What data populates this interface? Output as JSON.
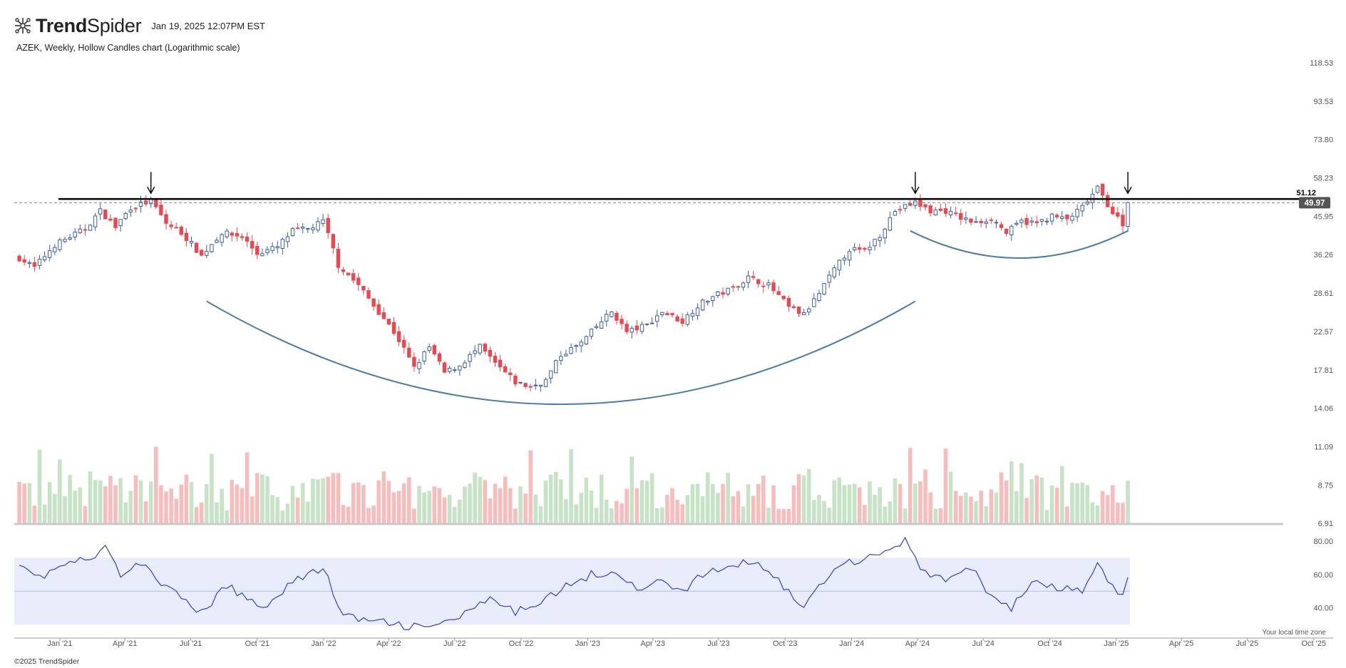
{
  "header": {
    "brand_bold": "Trend",
    "brand_light": "Spider",
    "timestamp": "Jan 19, 2025 12:07PM EST"
  },
  "chart_title": "AZEK, Weekly, Hollow Candles chart (Logarithmic scale)",
  "footer": "©2025 TrendSpider",
  "timezone_note": "Your local time zone",
  "colors": {
    "up": "#3b5ea8",
    "down": "#e8494f",
    "vol_up": "#c6e3c6",
    "vol_down": "#f7bdbd",
    "arc": "#4a7aa8",
    "rsi": "#3340c8",
    "rsi_band": "#e9ecfb"
  },
  "chart_data": {
    "type": "candlestick",
    "scale": "log",
    "interval": "Weekly",
    "symbol": "AZEK",
    "price_axis_ticks": [
      "118.53",
      "93.53",
      "73.80",
      "58.23",
      "45.95",
      "36.26",
      "28.61",
      "22.57",
      "17.81",
      "14.06",
      "11.09",
      "8.75",
      "6.91"
    ],
    "resistance_level": 51.12,
    "resistance_label": "51.12",
    "last_price": 49.97,
    "last_price_label": "49.97",
    "x_ticks": [
      "Jan '21",
      "Apr '21",
      "Jul '21",
      "Oct '21",
      "Jan '22",
      "Apr '22",
      "Jul '22",
      "Oct '22",
      "Jan '23",
      "Apr '23",
      "Jul '23",
      "Oct '23",
      "Jan '24",
      "Apr '24",
      "Jul '24",
      "Oct '24",
      "Jan '25",
      "Apr '25",
      "Jul '25",
      "Oct '25"
    ],
    "close_anchors": [
      [
        "2020-11-06",
        35.5
      ],
      [
        "2020-11-27",
        33.5
      ],
      [
        "2020-12-25",
        38.5
      ],
      [
        "2021-02-05",
        42.5
      ],
      [
        "2021-02-26",
        47.5
      ],
      [
        "2021-03-19",
        43
      ],
      [
        "2021-04-09",
        48.5
      ],
      [
        "2021-05-07",
        50.5
      ],
      [
        "2021-05-28",
        44
      ],
      [
        "2021-06-18",
        41.5
      ],
      [
        "2021-07-16",
        36
      ],
      [
        "2021-08-13",
        41.5
      ],
      [
        "2021-09-10",
        40.5
      ],
      [
        "2021-10-01",
        36.5
      ],
      [
        "2021-10-29",
        38
      ],
      [
        "2021-11-19",
        42
      ],
      [
        "2021-12-10",
        42.5
      ],
      [
        "2021-12-31",
        44.5
      ],
      [
        "2022-01-21",
        34
      ],
      [
        "2022-02-18",
        30
      ],
      [
        "2022-03-11",
        26.5
      ],
      [
        "2022-04-08",
        22.5
      ],
      [
        "2022-05-06",
        18
      ],
      [
        "2022-05-27",
        20.5
      ],
      [
        "2022-06-17",
        17.5
      ],
      [
        "2022-07-08",
        18.3
      ],
      [
        "2022-08-05",
        20.5
      ],
      [
        "2022-08-26",
        18.5
      ],
      [
        "2022-09-23",
        16.5
      ],
      [
        "2022-10-14",
        16
      ],
      [
        "2022-11-04",
        16.7
      ],
      [
        "2022-11-25",
        19.5
      ],
      [
        "2022-12-23",
        21
      ],
      [
        "2023-01-20",
        24
      ],
      [
        "2023-02-03",
        25.5
      ],
      [
        "2023-02-24",
        22.5
      ],
      [
        "2023-03-24",
        23.5
      ],
      [
        "2023-04-14",
        25.5
      ],
      [
        "2023-05-12",
        24
      ],
      [
        "2023-06-02",
        26.5
      ],
      [
        "2023-06-23",
        28
      ],
      [
        "2023-07-21",
        29.5
      ],
      [
        "2023-08-11",
        31.5
      ],
      [
        "2023-09-08",
        30
      ],
      [
        "2023-10-06",
        26.2
      ],
      [
        "2023-10-27",
        25
      ],
      [
        "2023-11-17",
        28.5
      ],
      [
        "2023-12-08",
        33
      ],
      [
        "2023-12-29",
        37.5
      ],
      [
        "2024-01-19",
        37
      ],
      [
        "2024-02-09",
        41
      ],
      [
        "2024-03-01",
        47.5
      ],
      [
        "2024-03-29",
        50
      ],
      [
        "2024-04-19",
        47.5
      ],
      [
        "2024-05-10",
        47.5
      ],
      [
        "2024-05-31",
        45.5
      ],
      [
        "2024-06-21",
        44
      ],
      [
        "2024-07-12",
        45.5
      ],
      [
        "2024-08-02",
        41.5
      ],
      [
        "2024-08-23",
        44.5
      ],
      [
        "2024-09-13",
        44
      ],
      [
        "2024-10-04",
        46
      ],
      [
        "2024-10-25",
        45
      ],
      [
        "2024-11-15",
        48.5
      ],
      [
        "2024-12-06",
        54.5
      ],
      [
        "2024-12-27",
        47
      ],
      [
        "2025-01-10",
        44
      ],
      [
        "2025-01-17",
        49.97
      ]
    ],
    "volume_axis": "relative",
    "rsi": {
      "ticks": [
        "80.00",
        "60.00",
        "40.00"
      ],
      "band_range": [
        30,
        70
      ],
      "midline": 50,
      "anchors": [
        [
          "2020-11-06",
          68
        ],
        [
          "2020-12-04",
          58
        ],
        [
          "2021-01-08",
          66
        ],
        [
          "2021-02-19",
          70
        ],
        [
          "2021-03-05",
          76
        ],
        [
          "2021-03-26",
          60
        ],
        [
          "2021-04-30",
          67
        ],
        [
          "2021-05-28",
          52
        ],
        [
          "2021-07-16",
          37
        ],
        [
          "2021-08-20",
          53
        ],
        [
          "2021-10-08",
          40
        ],
        [
          "2021-11-19",
          56
        ],
        [
          "2021-12-31",
          64
        ],
        [
          "2022-01-28",
          35
        ],
        [
          "2022-04-08",
          30
        ],
        [
          "2022-05-27",
          28
        ],
        [
          "2022-07-15",
          36
        ],
        [
          "2022-08-19",
          45
        ],
        [
          "2022-09-23",
          37
        ],
        [
          "2022-11-11",
          48
        ],
        [
          "2023-01-06",
          60
        ],
        [
          "2023-02-10",
          62
        ],
        [
          "2023-03-17",
          49
        ],
        [
          "2023-04-14",
          58
        ],
        [
          "2023-05-12",
          49
        ],
        [
          "2023-06-09",
          60
        ],
        [
          "2023-07-28",
          66
        ],
        [
          "2023-08-25",
          68
        ],
        [
          "2023-10-06",
          50
        ],
        [
          "2023-10-27",
          40
        ],
        [
          "2023-12-08",
          65
        ],
        [
          "2024-01-05",
          68
        ],
        [
          "2024-02-09",
          73
        ],
        [
          "2024-03-15",
          80
        ],
        [
          "2024-04-12",
          60
        ],
        [
          "2024-05-17",
          57
        ],
        [
          "2024-06-14",
          64
        ],
        [
          "2024-07-12",
          47
        ],
        [
          "2024-08-09",
          40
        ],
        [
          "2024-09-06",
          55
        ],
        [
          "2024-10-04",
          52
        ],
        [
          "2024-11-15",
          50
        ],
        [
          "2024-12-06",
          66
        ],
        [
          "2024-12-27",
          52
        ],
        [
          "2025-01-10",
          46
        ],
        [
          "2025-01-17",
          56
        ]
      ]
    },
    "annotations": [
      {
        "type": "arrow",
        "date": "2021-05-07"
      },
      {
        "type": "arrow",
        "date": "2024-03-29"
      },
      {
        "type": "arrow",
        "date": "2025-01-17"
      },
      {
        "type": "arc",
        "start_date": "2021-07-23",
        "end_date": "2024-03-29",
        "start_price": 27.2,
        "bottom_price": 14.4,
        "end_price": 27.2
      },
      {
        "type": "arc",
        "start_date": "2024-03-22",
        "end_date": "2025-01-17",
        "start_price": 42,
        "bottom_price": 35.5,
        "end_price": 42
      }
    ]
  }
}
